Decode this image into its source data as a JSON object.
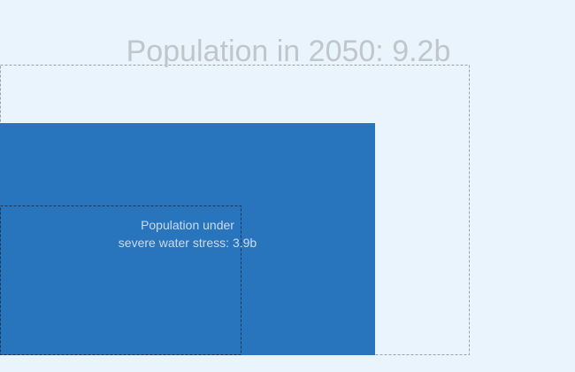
{
  "title": "Population in 2050: 9.2b",
  "inner_label": {
    "lines": [
      "Population under",
      "severe water stress: 3.9b"
    ]
  }
}
